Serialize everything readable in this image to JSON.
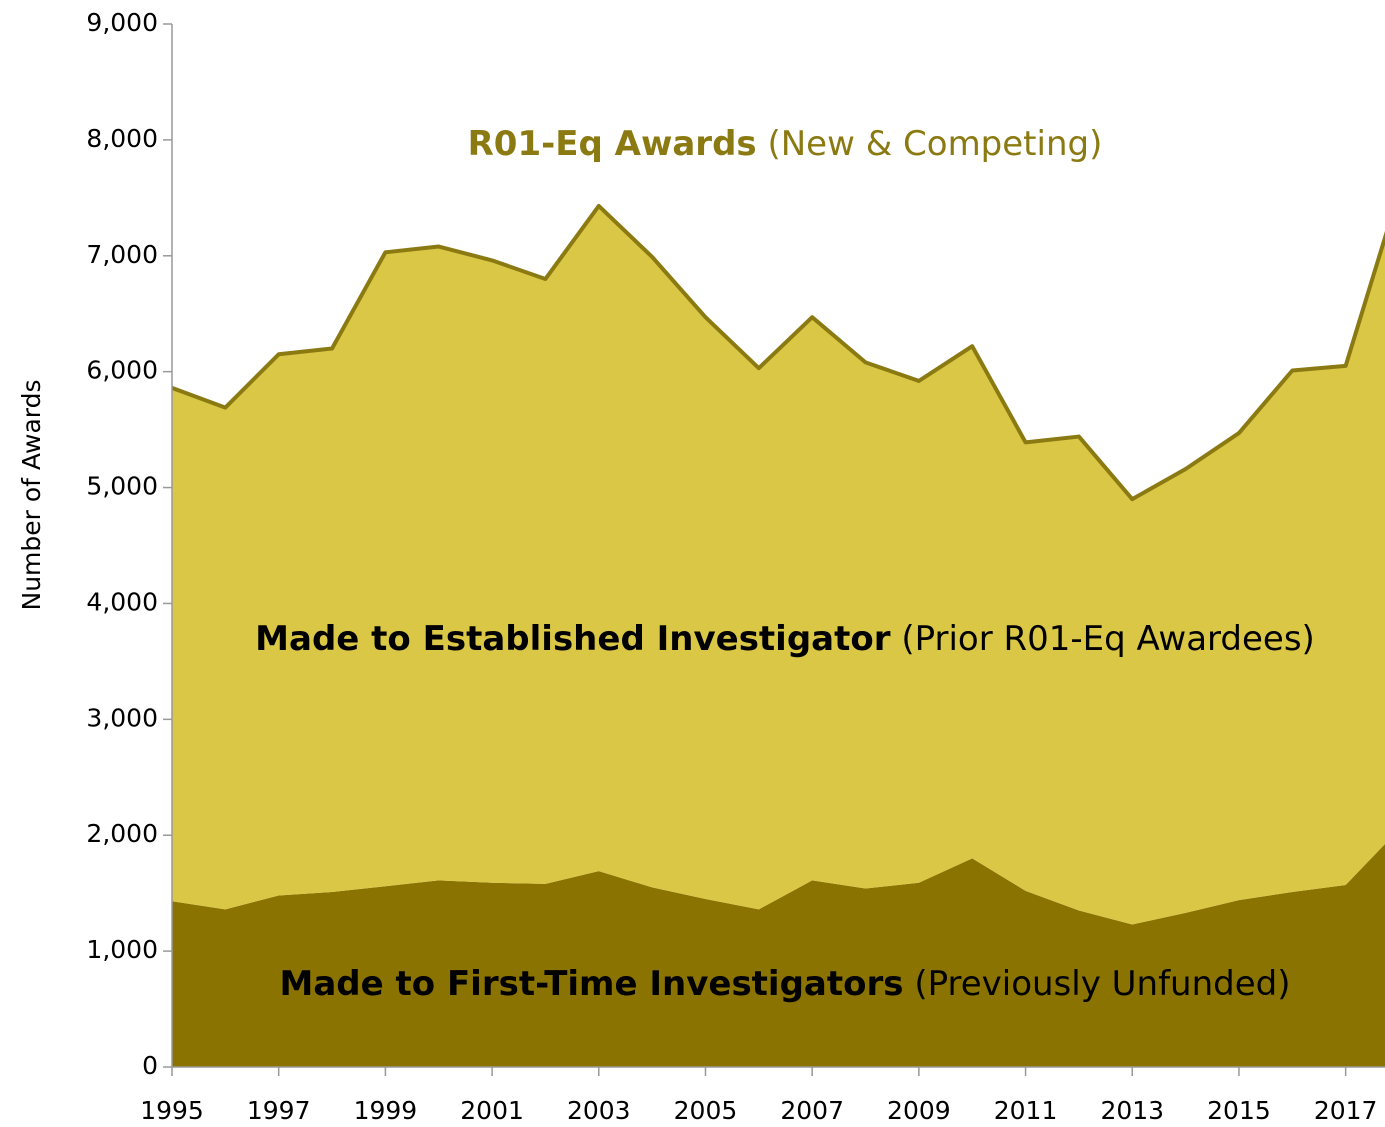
{
  "chart_data": {
    "type": "stacked_area",
    "title": "R01-Eq Awards",
    "subtitle": "(New & Competing)",
    "ylabel": "Number of Awards",
    "x": [
      1995,
      1996,
      1997,
      1998,
      1999,
      2000,
      2001,
      2002,
      2003,
      2004,
      2005,
      2006,
      2007,
      2008,
      2009,
      2010,
      2011,
      2012,
      2013,
      2014,
      2015,
      2016,
      2017,
      2018
    ],
    "series": [
      {
        "name": "Made to First-Time Investigators",
        "note": "(Previously Unfunded)",
        "color": "#8a7300",
        "values": [
          1430,
          1360,
          1480,
          1510,
          1560,
          1610,
          1590,
          1580,
          1690,
          1550,
          1450,
          1360,
          1610,
          1540,
          1590,
          1800,
          1520,
          1350,
          1230,
          1330,
          1440,
          1510,
          1570,
          2050
        ]
      },
      {
        "name": "Made to Established Investigator",
        "note": "(Prior R01-Eq Awardees)",
        "color": "#dac745",
        "values": [
          4430,
          4330,
          4670,
          4690,
          5470,
          5470,
          5370,
          5220,
          5740,
          5440,
          5020,
          4670,
          4860,
          4540,
          4330,
          4420,
          3870,
          4090,
          3670,
          3830,
          4030,
          4500,
          4480,
          5500
        ]
      }
    ],
    "line_color": "#8b7a12",
    "xlim": [
      1995,
      2018
    ],
    "xticks": [
      1995,
      1997,
      1999,
      2001,
      2003,
      2005,
      2007,
      2009,
      2011,
      2013,
      2015,
      2017
    ],
    "ylim": [
      0,
      9000
    ],
    "yticks": [
      0,
      {
        "value": 1000,
        "label": "1,000"
      },
      {
        "value": 2000,
        "label": "2,000"
      },
      {
        "value": 3000,
        "label": "3,000"
      },
      {
        "value": 4000,
        "label": "4,000"
      },
      {
        "value": 5000,
        "label": "5,000"
      },
      {
        "value": 6000,
        "label": "6,000"
      },
      {
        "value": 7000,
        "label": "7,000"
      },
      {
        "value": 8000,
        "label": "8,000"
      },
      {
        "value": 9000,
        "label": "9,000"
      }
    ]
  }
}
